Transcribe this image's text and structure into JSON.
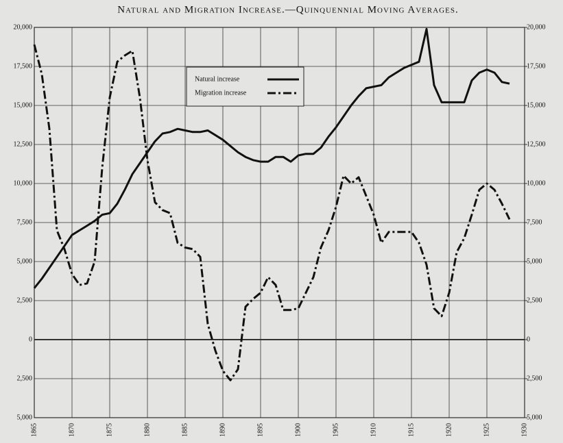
{
  "chart_data": {
    "type": "line",
    "title": "Natural and Migration Increase.—Quinquennial Moving Averages.",
    "x": [
      1865,
      1866,
      1867,
      1868,
      1869,
      1870,
      1871,
      1872,
      1873,
      1874,
      1875,
      1876,
      1877,
      1878,
      1879,
      1880,
      1881,
      1882,
      1883,
      1884,
      1885,
      1886,
      1887,
      1888,
      1889,
      1890,
      1891,
      1892,
      1893,
      1894,
      1895,
      1896,
      1897,
      1898,
      1899,
      1900,
      1901,
      1902,
      1903,
      1904,
      1905,
      1906,
      1907,
      1908,
      1909,
      1910,
      1911,
      1912,
      1913,
      1914,
      1915,
      1916,
      1917,
      1918,
      1919,
      1920,
      1921,
      1922,
      1923,
      1924,
      1925,
      1926,
      1927,
      1928
    ],
    "series": [
      {
        "name": "Natural increase",
        "color": "#111111",
        "style": "solid",
        "values": [
          3300,
          3900,
          4600,
          5300,
          6000,
          6700,
          7000,
          7300,
          7600,
          8000,
          8100,
          8700,
          9600,
          10600,
          11300,
          12000,
          12700,
          13200,
          13300,
          13500,
          13400,
          13300,
          13300,
          13400,
          13100,
          12800,
          12400,
          12000,
          11700,
          11500,
          11400,
          11400,
          11700,
          11700,
          11400,
          11800,
          11900,
          11900,
          12300,
          13000,
          13600,
          14300,
          15000,
          15600,
          16100,
          16200,
          16300,
          16800,
          17100,
          17400,
          17600,
          17800,
          19900,
          16300,
          15200,
          15200,
          15200,
          15200,
          16600,
          17100,
          17300,
          17100,
          16500,
          16400
        ]
      },
      {
        "name": "Migration increase",
        "color": "#111111",
        "style": "dashdot",
        "values": [
          18900,
          17000,
          13500,
          7000,
          5800,
          4200,
          3500,
          3600,
          5000,
          11000,
          15500,
          17800,
          18200,
          18500,
          15500,
          11500,
          8800,
          8300,
          8100,
          6200,
          5900,
          5800,
          5300,
          1000,
          -700,
          -2000,
          -2600,
          -1900,
          2100,
          2600,
          3000,
          4000,
          3500,
          1900,
          1900,
          2000,
          3000,
          4000,
          5900,
          7000,
          8500,
          10500,
          10000,
          10400,
          9200,
          8000,
          6200,
          6900,
          6900,
          6900,
          6900,
          6200,
          4800,
          2000,
          1500,
          3000,
          5600,
          6500,
          8000,
          9600,
          10000,
          9600,
          8700,
          7700
        ]
      }
    ],
    "xlim": [
      1865,
      1930
    ],
    "xticks": [
      1865,
      1870,
      1875,
      1880,
      1885,
      1890,
      1895,
      1900,
      1905,
      1910,
      1915,
      1920,
      1925,
      1930
    ],
    "ylim": [
      -5000,
      20000
    ],
    "yticks": [
      {
        "value": 20000,
        "label": "20,000"
      },
      {
        "value": 17500,
        "label": "17,500"
      },
      {
        "value": 15000,
        "label": "15,000"
      },
      {
        "value": 12500,
        "label": "12,500"
      },
      {
        "value": 10000,
        "label": "10,000"
      },
      {
        "value": 7500,
        "label": "7,500"
      },
      {
        "value": 5000,
        "label": "5,000"
      },
      {
        "value": 2500,
        "label": "2,500"
      },
      0,
      {
        "value": -2500,
        "label": "2,500"
      },
      {
        "value": -5000,
        "label": "5,000"
      }
    ],
    "y2lim": [
      -5000,
      20000
    ],
    "y2ticks": [
      {
        "value": 20000,
        "label": "20,000"
      },
      {
        "value": 17500,
        "label": "17,500"
      },
      {
        "value": 15000,
        "label": "15,000"
      },
      {
        "value": 12500,
        "label": "12,500"
      },
      {
        "value": 10000,
        "label": "10,000"
      },
      {
        "value": 7500,
        "label": "7,500"
      },
      {
        "value": 5000,
        "label": "5,000"
      },
      {
        "value": 2500,
        "label": "2,500"
      },
      0,
      {
        "value": -2500,
        "label": "2,500"
      },
      {
        "value": -5000,
        "label": "5,000"
      }
    ],
    "grid": true
  }
}
